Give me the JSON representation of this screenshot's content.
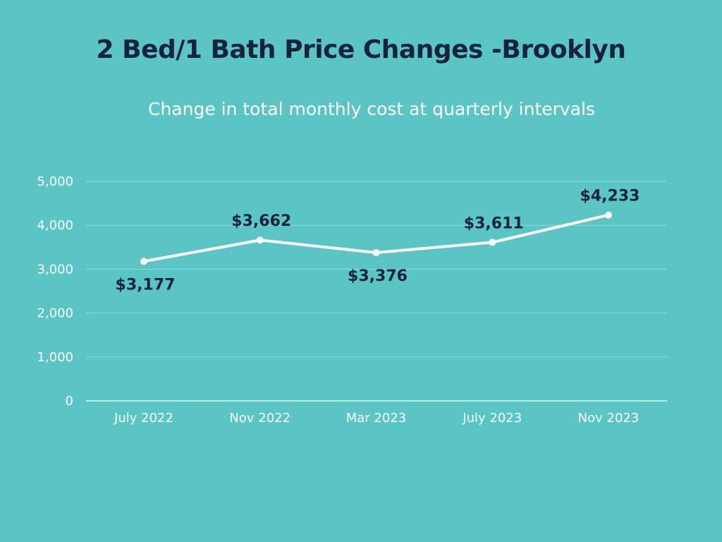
{
  "header": {
    "title": "2 Bed/1 Bath Price Changes -Brooklyn",
    "subtitle": "Change in total monthly cost at quarterly intervals"
  },
  "colors": {
    "background": "#5bc5c5",
    "title": "#16233a",
    "line": "#ffffff",
    "grid": "#8fdada",
    "data_label": "#16233a"
  },
  "chart_data": {
    "type": "line",
    "title": "2 Bed/1 Bath Price Changes -Brooklyn",
    "subtitle": "Change in total monthly cost at quarterly intervals",
    "xlabel": "",
    "ylabel": "",
    "categories": [
      "July 2022",
      "Nov 2022",
      "Mar 2023",
      "July 2023",
      "Nov 2023"
    ],
    "series": [
      {
        "values": [
          3177,
          3662,
          3376,
          3611,
          4233
        ],
        "labels": [
          "$3,177",
          "$3,662",
          "$3,376",
          "$3,611",
          "$4,233"
        ]
      }
    ],
    "label_positions": [
      "below",
      "above",
      "below",
      "above",
      "above"
    ],
    "ylim": [
      0,
      5000
    ],
    "yticks": [
      0,
      1000,
      2000,
      3000,
      4000,
      5000
    ],
    "ytick_labels": [
      "0",
      "1,000",
      "2,000",
      "3,000",
      "4,000",
      "5,000"
    ],
    "grid": true,
    "legend": "none"
  }
}
